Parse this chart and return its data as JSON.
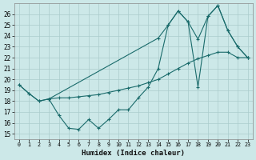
{
  "xlabel": "Humidex (Indice chaleur)",
  "background_color": "#cce8e8",
  "grid_color": "#aacccc",
  "line_color": "#1a6b6b",
  "xlim": [
    -0.5,
    23.5
  ],
  "ylim": [
    14.5,
    27.0
  ],
  "x_ticks": [
    0,
    1,
    2,
    3,
    4,
    5,
    6,
    7,
    8,
    9,
    10,
    11,
    12,
    13,
    14,
    15,
    16,
    17,
    18,
    19,
    20,
    21,
    22,
    23
  ],
  "yticks": [
    15,
    16,
    17,
    18,
    19,
    20,
    21,
    22,
    23,
    24,
    25,
    26
  ],
  "series1_x": [
    0,
    1,
    2,
    3,
    4,
    5,
    6,
    7,
    8,
    9,
    10,
    11,
    12,
    13,
    14,
    15,
    16,
    17,
    18,
    19,
    20,
    21,
    22,
    23
  ],
  "series1_y": [
    19.5,
    18.7,
    18.0,
    18.2,
    16.7,
    15.5,
    15.4,
    16.3,
    15.5,
    16.3,
    17.2,
    17.2,
    18.3,
    19.3,
    21.0,
    25.0,
    26.3,
    25.3,
    19.3,
    25.8,
    26.8,
    24.5,
    23.0,
    22.0
  ],
  "series2_x": [
    0,
    1,
    2,
    3,
    4,
    5,
    6,
    7,
    8,
    9,
    10,
    11,
    12,
    13,
    14,
    15,
    16,
    17,
    18,
    19,
    20,
    21,
    22,
    23
  ],
  "series2_y": [
    19.5,
    18.7,
    18.0,
    18.2,
    18.3,
    18.3,
    18.4,
    18.5,
    18.6,
    18.8,
    19.0,
    19.2,
    19.4,
    19.7,
    20.0,
    20.5,
    21.0,
    21.5,
    21.9,
    22.2,
    22.5,
    22.5,
    22.0,
    22.0
  ],
  "series3_x": [
    3,
    14,
    15,
    16,
    17,
    18,
    19,
    20,
    21,
    22,
    23
  ],
  "series3_y": [
    18.2,
    23.8,
    25.0,
    26.3,
    25.3,
    23.7,
    25.8,
    26.8,
    24.5,
    23.0,
    22.0
  ]
}
